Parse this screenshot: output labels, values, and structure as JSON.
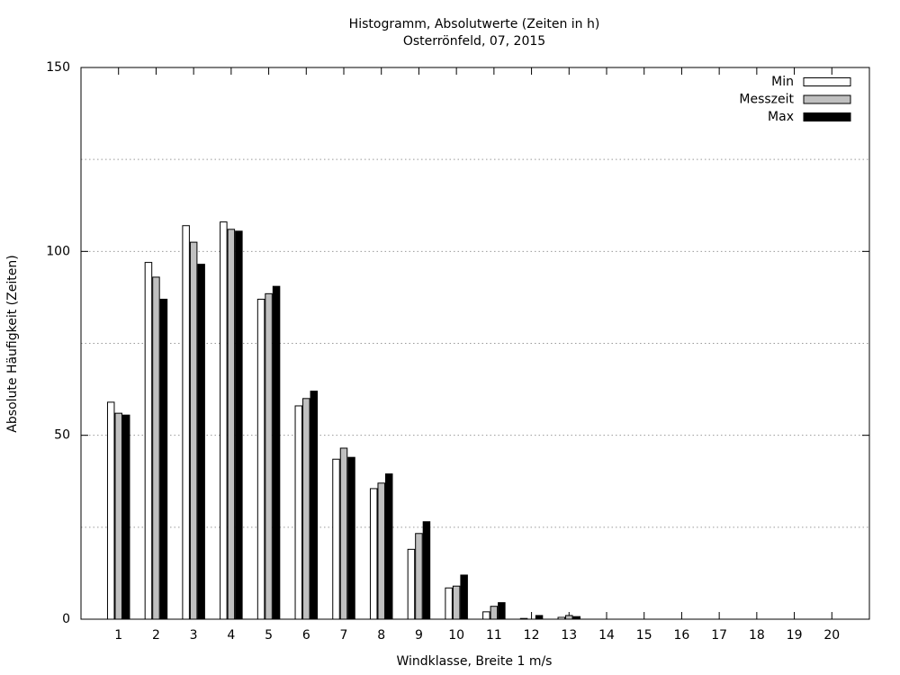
{
  "chart_data": {
    "type": "bar",
    "title": "Histogramm, Absolutwerte (Zeiten in h)",
    "subtitle": "Osterrönfeld, 07, 2015",
    "x_label": "Windklasse, Breite 1 m/s",
    "y_label": "Absolute Häufigkeit (Zeiten)",
    "categories": [
      "1",
      "2",
      "3",
      "4",
      "5",
      "6",
      "7",
      "8",
      "9",
      "10",
      "11",
      "12",
      "13",
      "14",
      "15",
      "16",
      "17",
      "18",
      "19",
      "20"
    ],
    "series": [
      {
        "name": "Min",
        "color": "#ffffff",
        "values": [
          59,
          97,
          107,
          108,
          87,
          58,
          43.5,
          35.5,
          19,
          8.5,
          2,
          0.2,
          0.5,
          0,
          0,
          0,
          0,
          0,
          0,
          0
        ]
      },
      {
        "name": "Messzeit",
        "color": "#c0c0c0",
        "values": [
          56,
          93,
          102.5,
          106,
          88.5,
          60,
          46.5,
          37,
          23.3,
          9,
          3.5,
          0,
          1,
          0,
          0,
          0,
          0,
          0,
          0,
          0
        ]
      },
      {
        "name": "Max",
        "color": "#000000",
        "values": [
          55.5,
          87,
          96.5,
          105.5,
          90.5,
          62,
          44,
          39.5,
          26.5,
          12,
          4.5,
          1,
          0.7,
          0,
          0,
          0,
          0,
          0,
          0,
          0
        ]
      }
    ],
    "ylim": [
      0,
      150
    ],
    "yticks": [
      0,
      50,
      100,
      150
    ],
    "grid_yticks": [
      25,
      50,
      75,
      100,
      125
    ],
    "grid": true,
    "legend": "top-right"
  }
}
